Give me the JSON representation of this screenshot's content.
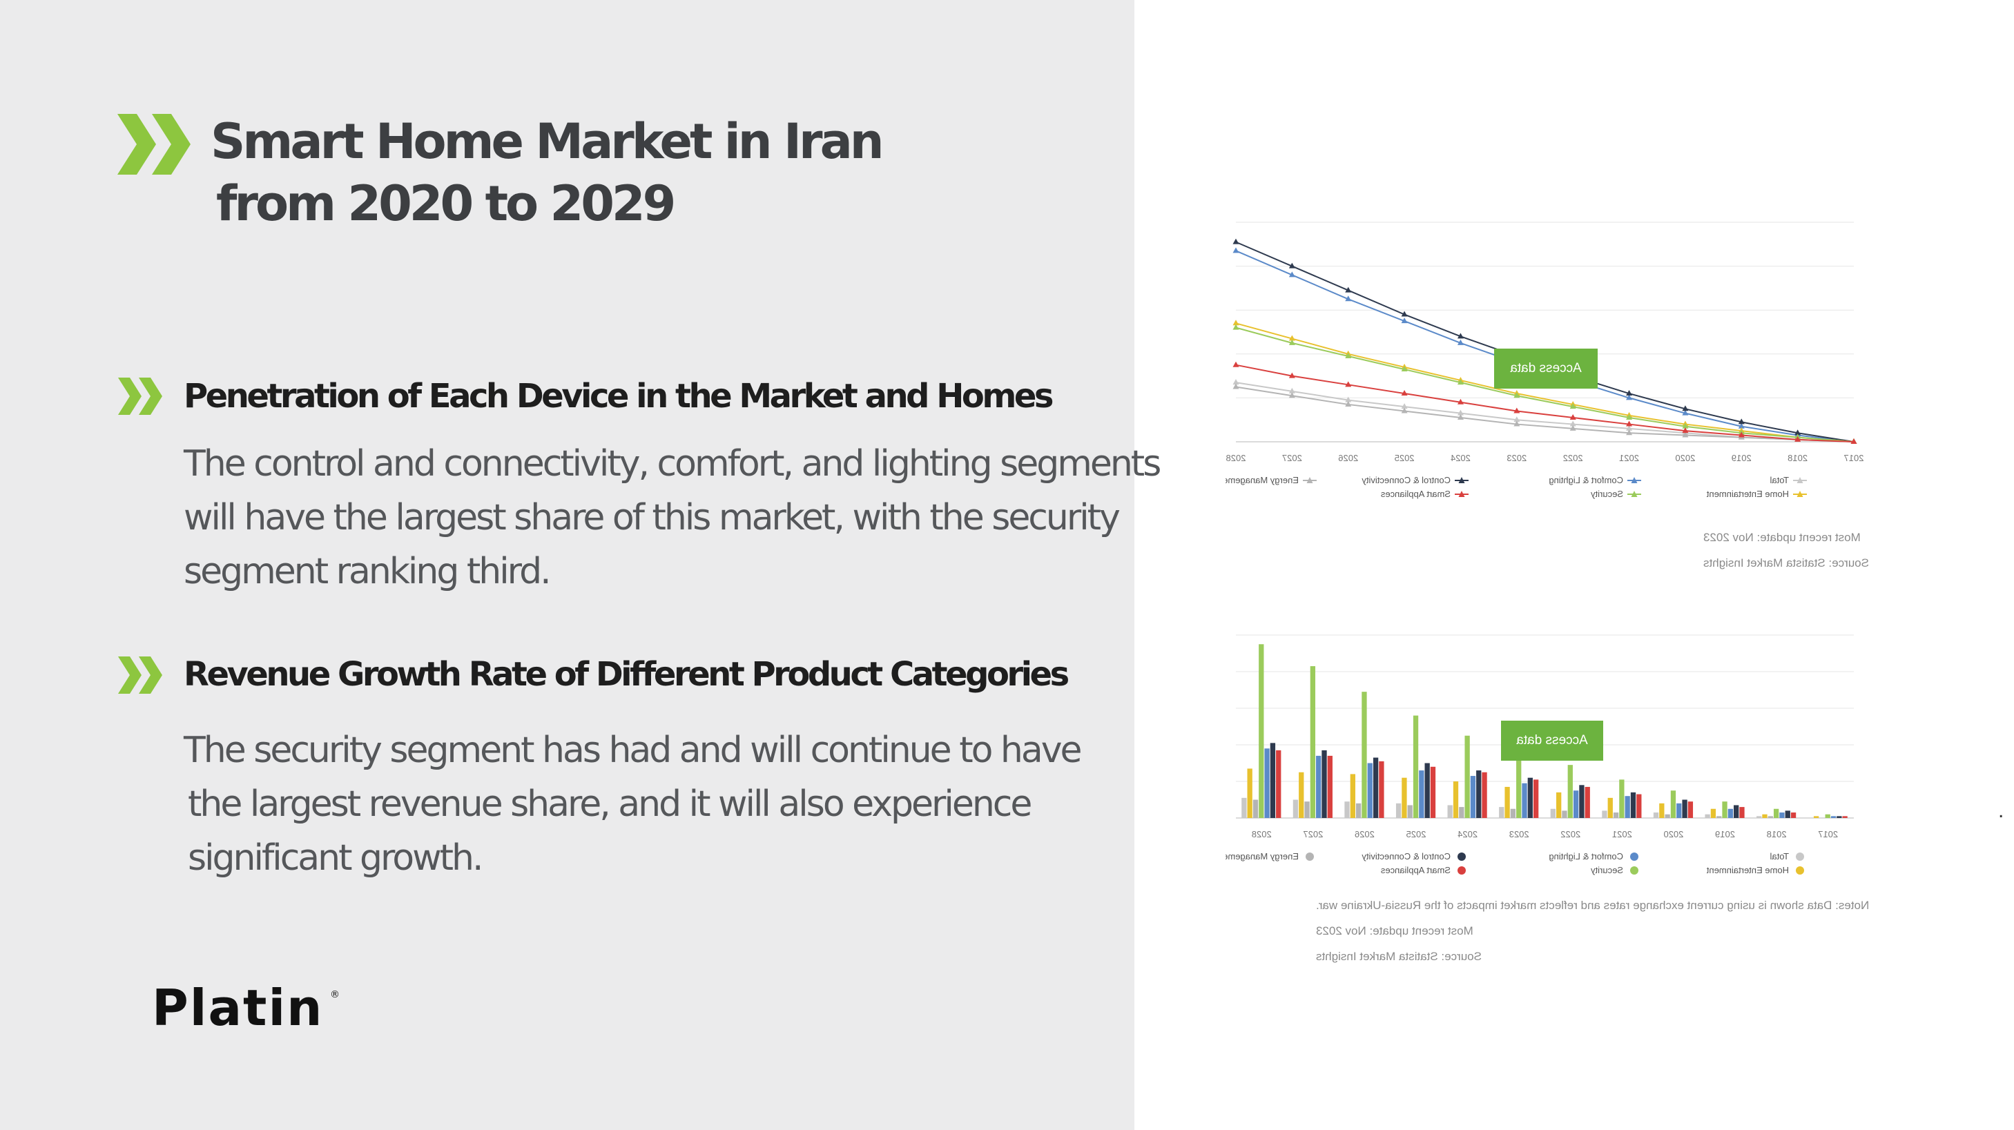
{
  "title": {
    "line1": "Smart Home Market in Iran",
    "line2": "from 2020 to 2029"
  },
  "sections": [
    {
      "heading": "Penetration of Each Device in the Market and Homes",
      "lines": [
        "The control and connectivity, comfort, and lighting segments",
        "will have the largest share of this market, with the security",
        "segment ranking third."
      ]
    },
    {
      "heading": "Revenue Growth Rate of Different Product Categories",
      "lines": [
        "The security segment has had and will continue to have",
        "the largest revenue share, and it will also experience",
        "significant growth."
      ]
    }
  ],
  "logo": {
    "text": "Platin",
    "mark": "®"
  },
  "colors": {
    "accent": "#8dc63f",
    "panel": "#ebebec",
    "title": "#3d3f42",
    "button": "#6cb33f"
  },
  "access_button": "Access data",
  "footnotes": {
    "chart1": [
      "Most recent update: Nov 2023",
      "Source: Statista Market Insights"
    ],
    "chart2": [
      "Notes: Data shown is using current exchange rates and reflects market impacts of the Russia-Ukraine war.",
      "Most recent update: Nov 2023",
      "Source: Statista Market Insights"
    ]
  },
  "chart_data": [
    {
      "type": "line",
      "mirrored": true,
      "x": [
        "2017",
        "2018",
        "2019",
        "2020",
        "2021",
        "2022",
        "2023",
        "2024",
        "2025",
        "2026",
        "2027",
        "2028"
      ],
      "ylim": [
        0,
        100
      ],
      "grid": true,
      "legend_position": "bottom",
      "series": [
        {
          "name": "Total",
          "color": "#c8c8c8",
          "values": [
            0,
            1,
            2,
            4,
            6,
            8,
            10,
            13,
            16,
            19,
            23,
            27
          ]
        },
        {
          "name": "Comfort & Lighting",
          "color": "#5b8ac9",
          "values": [
            0,
            3,
            7,
            13,
            20,
            28,
            36,
            45,
            55,
            65,
            76,
            87
          ]
        },
        {
          "name": "Control & Connectivity",
          "color": "#2e3a4f",
          "values": [
            0,
            4,
            9,
            15,
            22,
            30,
            39,
            48,
            58,
            69,
            80,
            91
          ]
        },
        {
          "name": "Energy Management",
          "color": "#b4b4b4",
          "values": [
            0,
            1,
            2,
            3,
            4,
            6,
            8,
            11,
            14,
            17,
            21,
            25
          ]
        },
        {
          "name": "Home Entertainment",
          "color": "#e8c12e",
          "values": [
            0,
            2,
            5,
            8,
            12,
            17,
            22,
            28,
            34,
            40,
            47,
            54
          ]
        },
        {
          "name": "Security",
          "color": "#9bcb5c",
          "values": [
            0,
            2,
            4,
            7,
            11,
            16,
            21,
            27,
            33,
            39,
            45,
            52
          ]
        },
        {
          "name": "Smart Appliances",
          "color": "#d9403e",
          "values": [
            0,
            1,
            3,
            5,
            8,
            11,
            14,
            18,
            22,
            26,
            30,
            35
          ]
        }
      ]
    },
    {
      "type": "bar",
      "mirrored": true,
      "x": [
        "2017",
        "2018",
        "2019",
        "2020",
        "2021",
        "2022",
        "2023",
        "2024",
        "2025",
        "2026",
        "2027",
        "2028"
      ],
      "ylim": [
        0,
        100
      ],
      "grid": true,
      "legend_position": "bottom",
      "series": [
        {
          "name": "Total",
          "color": "#c8c8c8",
          "values": [
            0,
            1,
            2,
            3,
            4,
            5,
            6,
            7,
            8,
            9,
            10,
            11
          ]
        },
        {
          "name": "Comfort & Lighting",
          "color": "#5b8ac9",
          "values": [
            1,
            3,
            5,
            8,
            12,
            15,
            19,
            23,
            26,
            30,
            34,
            38
          ]
        },
        {
          "name": "Control & Connectivity",
          "color": "#2e3a4f",
          "values": [
            1,
            4,
            7,
            10,
            14,
            18,
            22,
            26,
            30,
            33,
            37,
            41
          ]
        },
        {
          "name": "Energy Management",
          "color": "#b4b4b4",
          "values": [
            0,
            1,
            1,
            2,
            3,
            4,
            5,
            6,
            7,
            8,
            9,
            10
          ]
        },
        {
          "name": "Home Entertainment",
          "color": "#e8c12e",
          "values": [
            1,
            2,
            5,
            8,
            11,
            14,
            17,
            20,
            22,
            24,
            25,
            27
          ]
        },
        {
          "name": "Security",
          "color": "#9bcb5c",
          "values": [
            2,
            5,
            9,
            15,
            21,
            29,
            37,
            45,
            56,
            69,
            83,
            95
          ]
        },
        {
          "name": "Smart Appliances",
          "color": "#d9403e",
          "values": [
            1,
            3,
            6,
            9,
            13,
            17,
            21,
            25,
            28,
            31,
            34,
            37
          ]
        }
      ]
    }
  ]
}
